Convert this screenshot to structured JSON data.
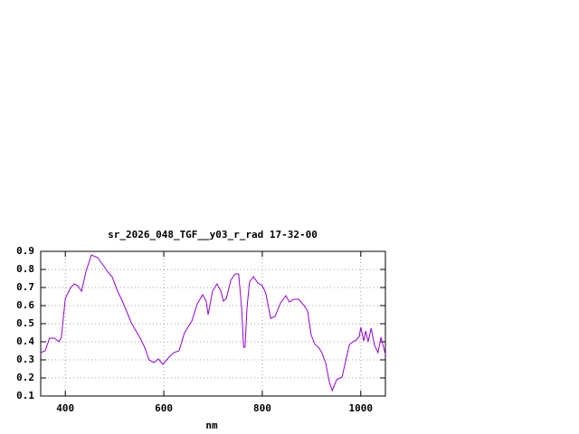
{
  "chart_data": {
    "type": "line",
    "title": "sr_2026_048_TGF__y03_r_rad 17-32-00",
    "x_label": "nm",
    "x": [
      350,
      359,
      368,
      378,
      387,
      392,
      400,
      411,
      418,
      425,
      433,
      442,
      453,
      466,
      479,
      488,
      495,
      506,
      515,
      525,
      534,
      552,
      561,
      570,
      580,
      589,
      598,
      609,
      620,
      631,
      642,
      657,
      668,
      679,
      686,
      690,
      699,
      708,
      716,
      721,
      727,
      736,
      745,
      752,
      758,
      762,
      765,
      769,
      774,
      782,
      791,
      800,
      807,
      817,
      826,
      837,
      848,
      855,
      864,
      874,
      885,
      892,
      899,
      907,
      914,
      921,
      929,
      936,
      942,
      951,
      962,
      969,
      977,
      984,
      991,
      997,
      1000,
      1006,
      1010,
      1015,
      1021,
      1028,
      1035,
      1041,
      1050
    ],
    "series": [
      {
        "name": "sr_2026_048_TGF__y03_r_rad",
        "color": "#9400d3",
        "values": [
          0.34,
          0.35,
          0.42,
          0.42,
          0.4,
          0.425,
          0.64,
          0.7,
          0.72,
          0.71,
          0.68,
          0.79,
          0.88,
          0.865,
          0.815,
          0.78,
          0.76,
          0.68,
          0.63,
          0.565,
          0.505,
          0.42,
          0.37,
          0.3,
          0.285,
          0.305,
          0.275,
          0.31,
          0.34,
          0.35,
          0.45,
          0.515,
          0.61,
          0.66,
          0.625,
          0.55,
          0.68,
          0.72,
          0.68,
          0.625,
          0.64,
          0.74,
          0.775,
          0.775,
          0.59,
          0.37,
          0.37,
          0.59,
          0.73,
          0.76,
          0.725,
          0.71,
          0.67,
          0.53,
          0.54,
          0.615,
          0.655,
          0.62,
          0.635,
          0.635,
          0.6,
          0.57,
          0.44,
          0.385,
          0.37,
          0.34,
          0.28,
          0.18,
          0.13,
          0.19,
          0.205,
          0.29,
          0.385,
          0.4,
          0.41,
          0.43,
          0.48,
          0.405,
          0.46,
          0.4,
          0.475,
          0.38,
          0.34,
          0.425,
          0.33
        ]
      }
    ],
    "xlim": [
      350,
      1050
    ],
    "xticks": [
      400,
      600,
      800,
      1000
    ],
    "ylim": [
      0.1,
      0.9
    ],
    "yticks": [
      0.1,
      0.2,
      0.3,
      0.4,
      0.5,
      0.6,
      0.7,
      0.8,
      0.9
    ],
    "grid": true
  }
}
